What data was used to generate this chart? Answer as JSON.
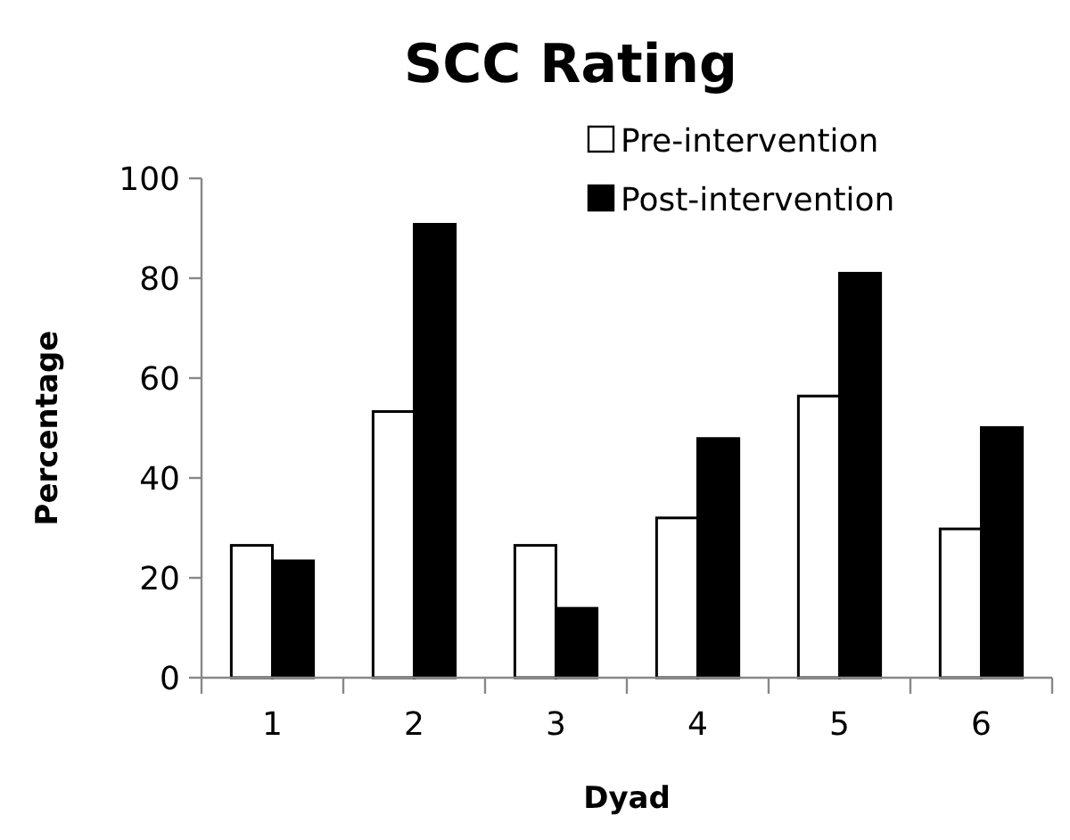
{
  "chart_data": {
    "type": "bar",
    "title": "SCC Rating",
    "xlabel": "Dyad",
    "ylabel": "Percentage",
    "categories": [
      "1",
      "2",
      "3",
      "4",
      "5",
      "6"
    ],
    "series": [
      {
        "name": "Pre-intervention",
        "color": "#ffffff",
        "values": [
          26.5,
          53.3,
          26.5,
          32,
          56.4,
          29.8
        ]
      },
      {
        "name": "Post-intervention",
        "color": "#000000",
        "values": [
          23.4,
          90.8,
          13.9,
          47.9,
          81,
          50.1
        ]
      }
    ],
    "ylim": [
      0,
      100
    ],
    "yticks": [
      0,
      20,
      40,
      60,
      80,
      100
    ],
    "grid": false,
    "legend": "top right"
  }
}
